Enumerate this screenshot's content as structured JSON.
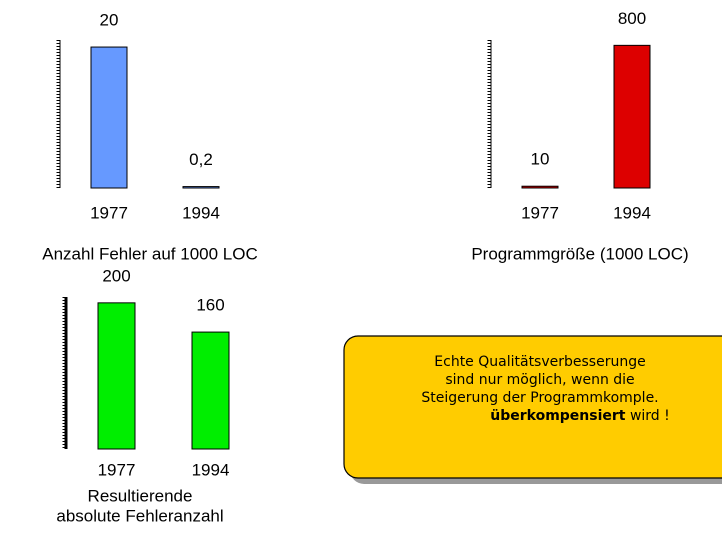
{
  "chart_data": [
    {
      "type": "bar",
      "title": [
        "Anzahl Fehler auf 1000 LOC"
      ],
      "categories": [
        "1977",
        "1994"
      ],
      "values": [
        20,
        0.2
      ],
      "value_labels": [
        "20",
        "0,2"
      ],
      "color": "#6699ff",
      "ylim": [
        0,
        21
      ]
    },
    {
      "type": "bar",
      "title": [
        "Programmgröße (1000 LOC)"
      ],
      "categories": [
        "1977",
        "1994"
      ],
      "values": [
        10,
        800
      ],
      "color": "#dd0000",
      "ylim": [
        0,
        830
      ]
    },
    {
      "type": "bar",
      "title": [
        "Resultierende",
        "absolute Fehleranzahl"
      ],
      "categories": [
        "1977",
        "1994"
      ],
      "values": [
        200,
        160
      ],
      "color": "#00ee00",
      "ylim": [
        0,
        208
      ]
    }
  ],
  "callout": {
    "lines": [
      "Echte Qualitätsverbesserunge",
      "sind nur möglich, wenn die",
      "Steigerung der Programmkomple."
    ],
    "emphasis": "überkompensiert",
    "tail": " wird !"
  }
}
